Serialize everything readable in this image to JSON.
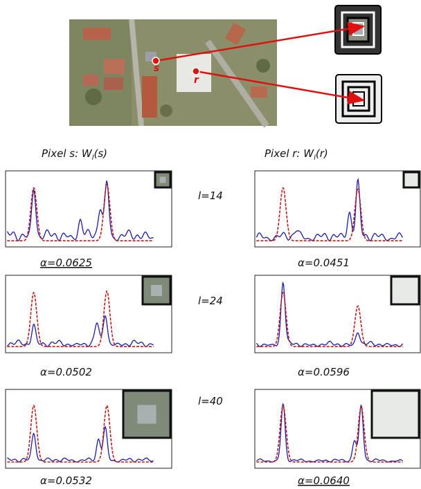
{
  "figure": {
    "image_labels": [
      "s",
      "r"
    ],
    "columns": [
      {
        "prefix": "Pixel s: W",
        "subscript": "l",
        "suffix": "(s)"
      },
      {
        "prefix": "Pixel r: W",
        "subscript": "l",
        "suffix": "(r)"
      }
    ],
    "rows": [
      {
        "scale": "l=14",
        "left_alpha": "α=0.0625",
        "right_alpha": "α=0.0451"
      },
      {
        "scale": "l=24",
        "left_alpha": "α=0.0502",
        "right_alpha": "α=0.0596"
      },
      {
        "scale": "l=40",
        "left_alpha": "α=0.0532",
        "right_alpha": "α=0.0640"
      }
    ]
  }
}
